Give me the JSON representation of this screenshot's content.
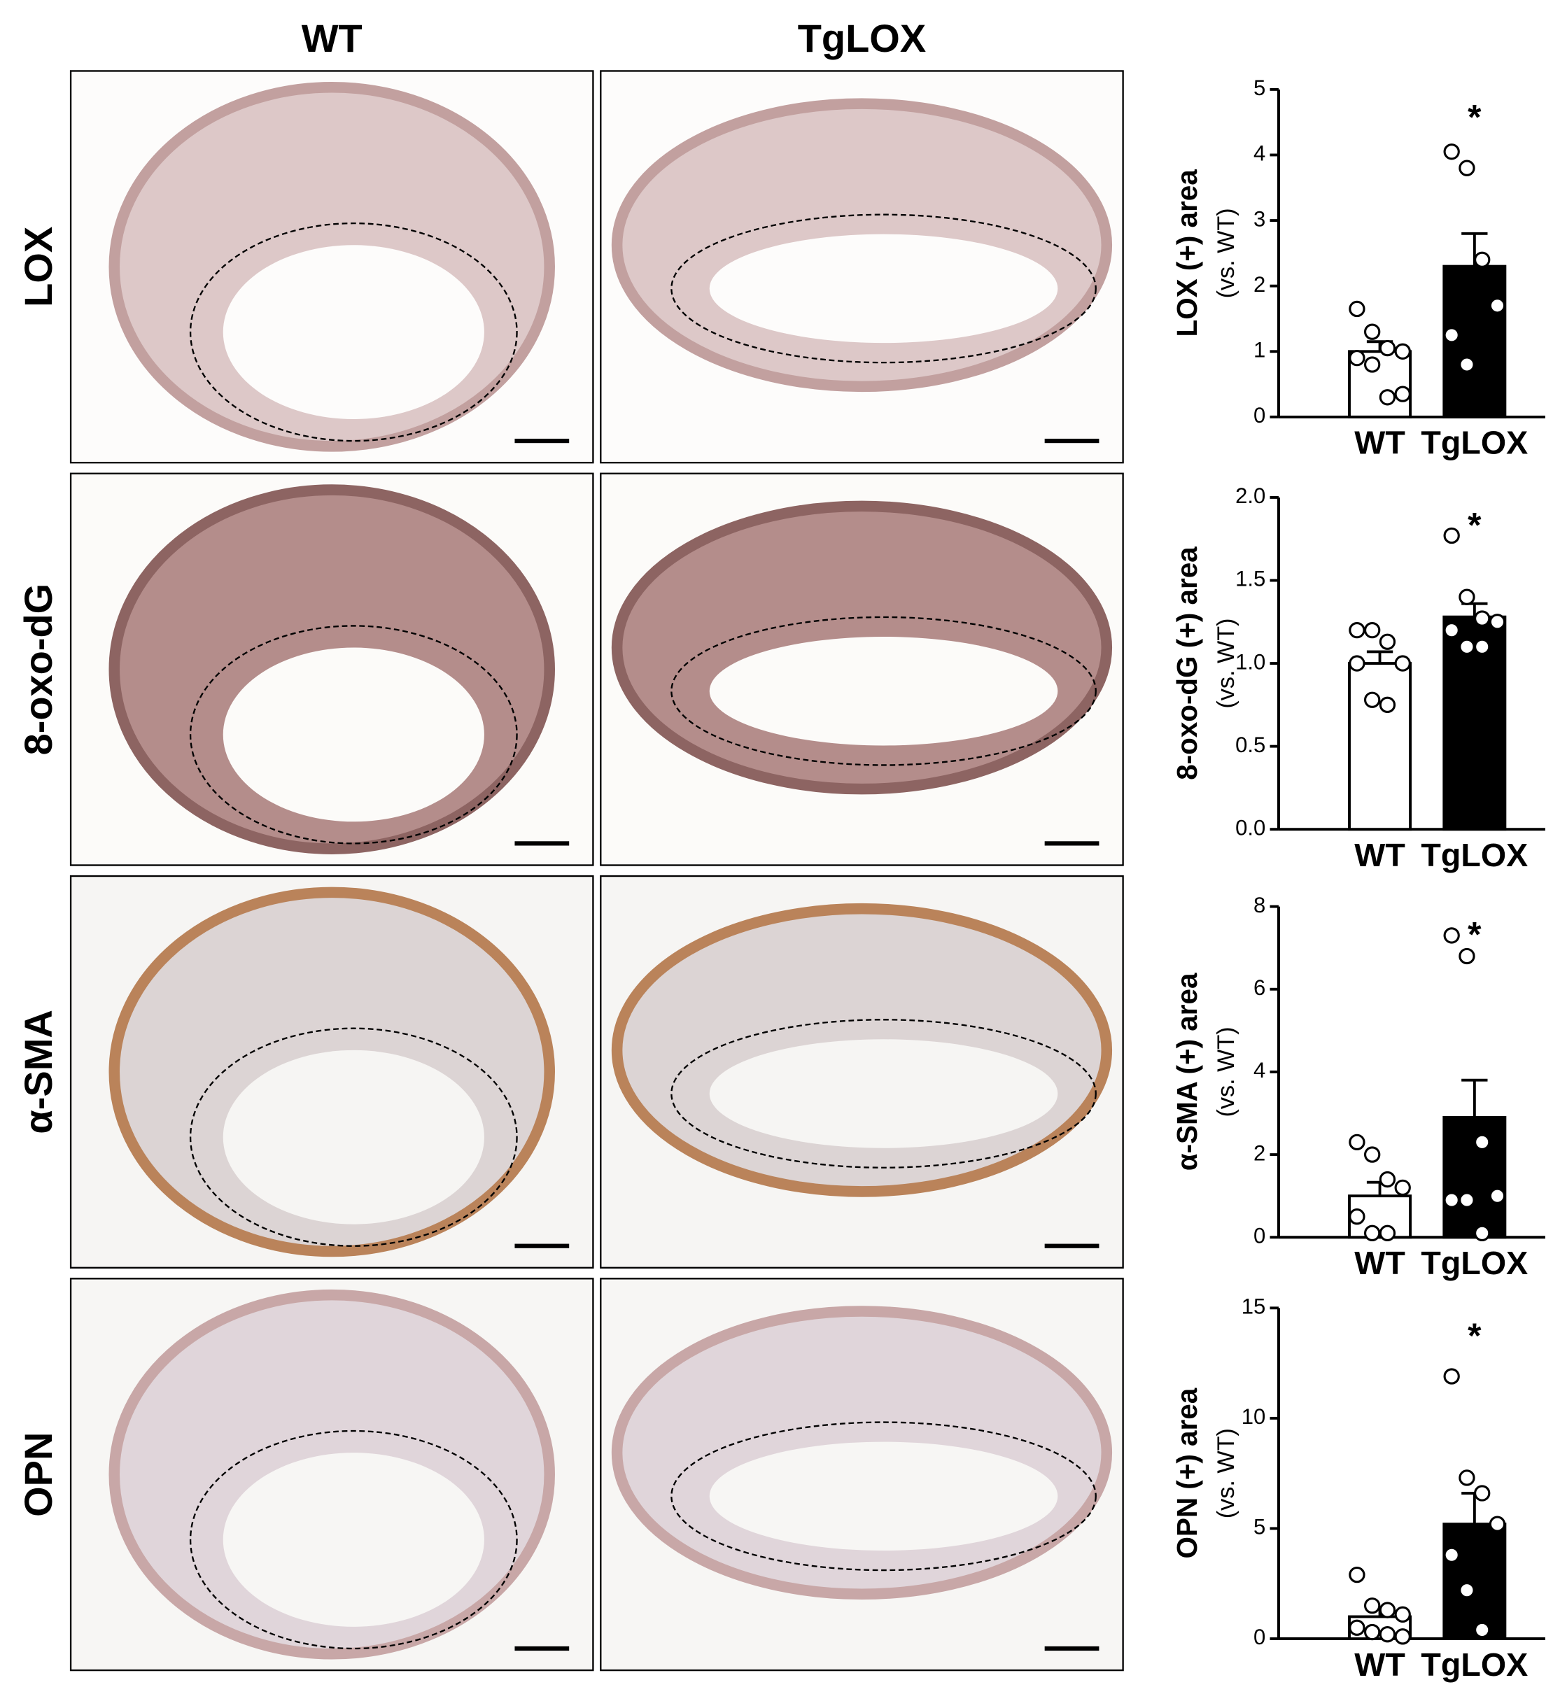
{
  "panel": {
    "columns": [
      "WT",
      "TgLOX"
    ],
    "rows": [
      "LOX",
      "8-oxo-dG",
      "α-SMA",
      "OPN"
    ]
  },
  "chart_data": [
    {
      "type": "bar",
      "ylabel": "LOX (+) area",
      "ysublabel": "(vs. WT)",
      "categories": [
        "WT",
        "TgLOX"
      ],
      "colors": [
        "#ffffff",
        "#000000"
      ],
      "values": [
        1.0,
        2.3
      ],
      "errors": [
        0.15,
        0.5
      ],
      "points": [
        [
          1.65,
          1.3,
          1.05,
          1.0,
          0.9,
          0.8,
          0.3,
          0.35
        ],
        [
          4.05,
          3.8,
          2.4,
          1.7,
          1.25,
          0.8
        ]
      ],
      "annotation": "*",
      "ylim": [
        0,
        5
      ],
      "yticks": [
        0,
        1,
        2,
        3,
        4,
        5
      ]
    },
    {
      "type": "bar",
      "ylabel": "8-oxo-dG (+) area",
      "ysublabel": "(vs. WT)",
      "categories": [
        "WT",
        "TgLOX"
      ],
      "colors": [
        "#ffffff",
        "#000000"
      ],
      "values": [
        1.0,
        1.28
      ],
      "errors": [
        0.07,
        0.08
      ],
      "points": [
        [
          1.2,
          1.2,
          1.13,
          1.0,
          1.0,
          0.78,
          0.75
        ],
        [
          1.77,
          1.4,
          1.27,
          1.25,
          1.2,
          1.1,
          1.1
        ]
      ],
      "annotation": "*",
      "ylim": [
        0,
        2
      ],
      "yticks": [
        {
          "value": 0,
          "label": "0.0"
        },
        0.5,
        {
          "value": 1,
          "label": "1.0"
        },
        1.5,
        {
          "value": 2,
          "label": "2.0"
        }
      ]
    },
    {
      "type": "bar",
      "ylabel": "α-SMA (+) area",
      "ysublabel": "(vs. WT)",
      "categories": [
        "WT",
        "TgLOX"
      ],
      "colors": [
        "#ffffff",
        "#000000"
      ],
      "values": [
        1.0,
        2.9
      ],
      "errors": [
        0.33,
        0.9
      ],
      "points": [
        [
          2.3,
          2.0,
          1.4,
          1.2,
          0.5,
          0.1,
          0.1
        ],
        [
          7.3,
          6.8,
          2.3,
          1.0,
          0.9,
          0.9,
          0.1
        ]
      ],
      "annotation": "*",
      "ylim": [
        0,
        8
      ],
      "yticks": [
        0,
        2,
        4,
        6,
        8
      ]
    },
    {
      "type": "bar",
      "ylabel": "OPN (+) area",
      "ysublabel": "(vs. WT)",
      "categories": [
        "WT",
        "TgLOX"
      ],
      "colors": [
        "#ffffff",
        "#000000"
      ],
      "values": [
        1.0,
        5.2
      ],
      "errors": [
        0.35,
        1.4
      ],
      "points": [
        [
          2.9,
          1.5,
          1.3,
          1.1,
          0.5,
          0.3,
          0.2,
          0.1
        ],
        [
          11.9,
          7.3,
          6.6,
          5.2,
          3.8,
          2.2,
          0.4
        ]
      ],
      "annotation": "*",
      "ylim": [
        0,
        15
      ],
      "yticks": [
        0,
        5,
        10,
        15
      ]
    }
  ]
}
